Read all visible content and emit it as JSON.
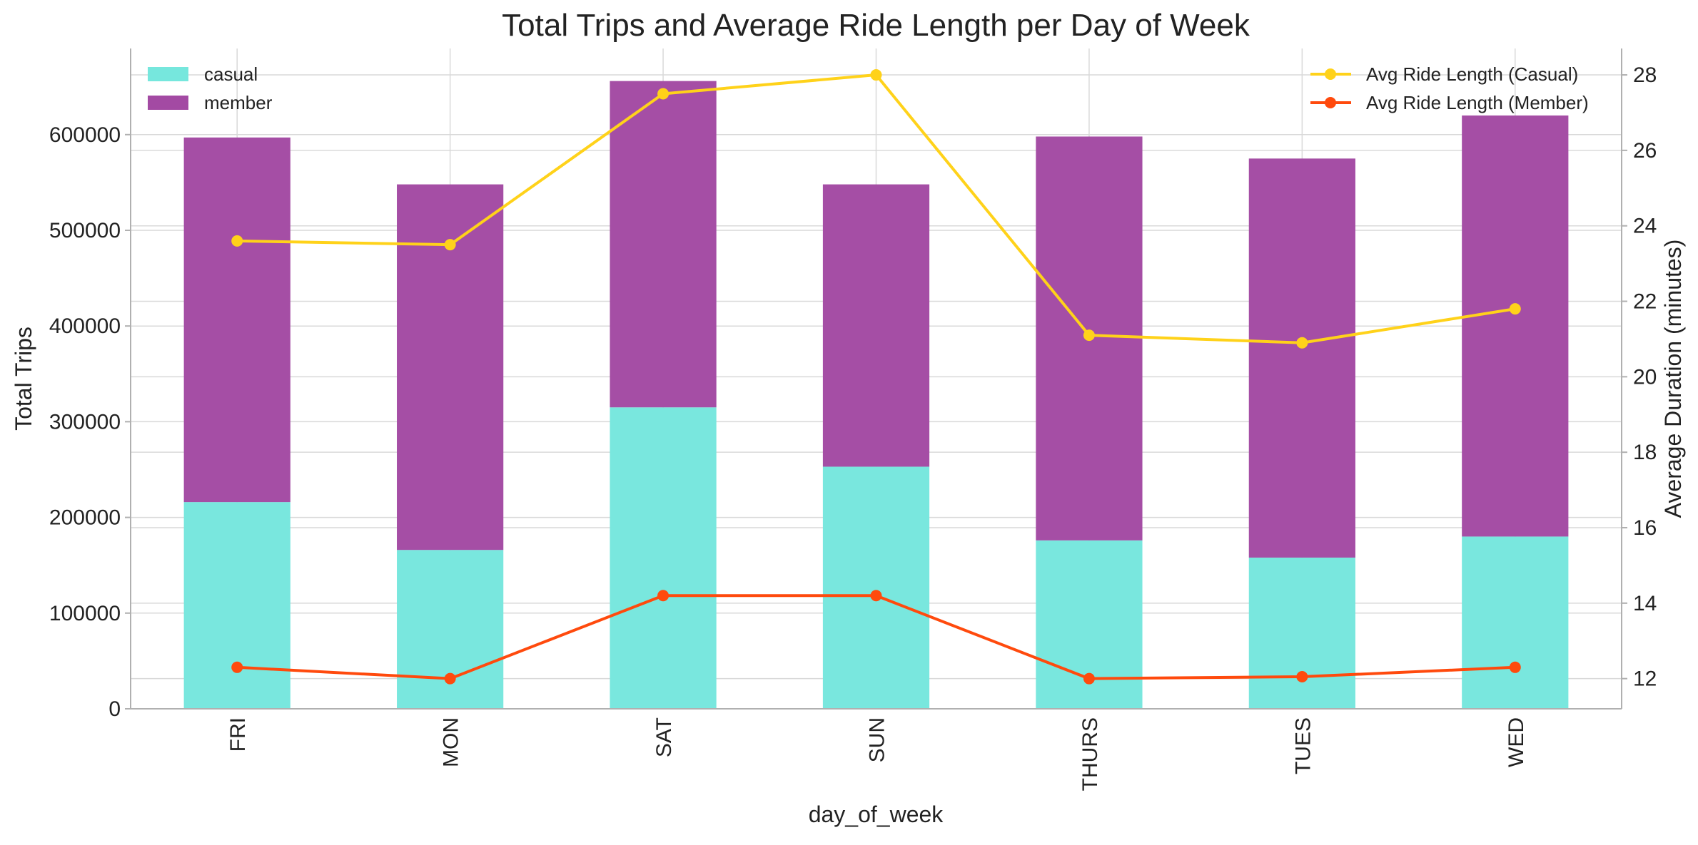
{
  "chart_data": {
    "type": "bar",
    "title": "Total Trips and Average Ride Length per Day of Week",
    "xlabel": "day_of_week",
    "ylabel": "Total Trips",
    "y2label": "Average Duration (minutes)",
    "categories": [
      "FRI",
      "MON",
      "SAT",
      "SUN",
      "THURS",
      "TUES",
      "WED"
    ],
    "ylim": [
      0,
      690000
    ],
    "yticks": [
      0,
      100000,
      200000,
      300000,
      400000,
      500000,
      600000
    ],
    "y2lim": [
      11.2,
      28.7
    ],
    "y2ticks": [
      12,
      14,
      16,
      18,
      20,
      22,
      24,
      26,
      28
    ],
    "grid": true,
    "bar_legend_position": "top-left",
    "line_legend_position": "top-right",
    "bar_series": [
      {
        "name": "casual",
        "color": "#76e7dd",
        "values": [
          216000,
          166000,
          315000,
          253000,
          176000,
          158000,
          180000
        ]
      },
      {
        "name": "member",
        "color": "#a34aa3",
        "values": [
          381000,
          382000,
          341000,
          295000,
          422000,
          417000,
          440000
        ]
      }
    ],
    "line_series": [
      {
        "name": "Avg Ride Length (Casual)",
        "color": "#ffd21a",
        "values": [
          23.6,
          23.5,
          27.5,
          28.0,
          21.1,
          20.9,
          21.8
        ]
      },
      {
        "name": "Avg Ride Length (Member)",
        "color": "#ff4a0d",
        "values": [
          12.3,
          12.0,
          14.2,
          14.2,
          12.0,
          12.05,
          12.3
        ]
      }
    ]
  }
}
